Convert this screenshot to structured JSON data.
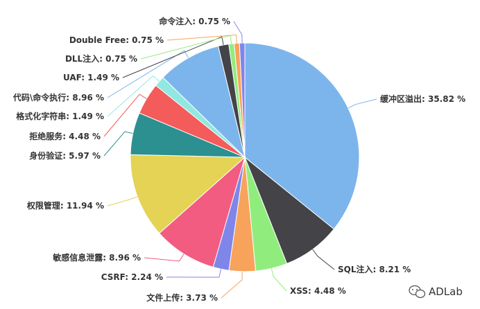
{
  "chart_data": {
    "type": "pie",
    "title": "",
    "slices": [
      {
        "label": "缓冲区溢出",
        "value": 35.82,
        "display": "缓冲区溢出: 35.82 %",
        "color": "#7cb5ec"
      },
      {
        "label": "SQL注入",
        "value": 8.21,
        "display": "SQL注入: 8.21 %",
        "color": "#434348"
      },
      {
        "label": "XSS",
        "value": 4.48,
        "display": "XSS: 4.48 %",
        "color": "#90ed7d"
      },
      {
        "label": "文件上传",
        "value": 3.73,
        "display": "文件上传: 3.73 %",
        "color": "#f7a35c"
      },
      {
        "label": "CSRF",
        "value": 2.24,
        "display": "CSRF: 2.24 %",
        "color": "#8085e9"
      },
      {
        "label": "敏感信息泄露",
        "value": 8.96,
        "display": "敏感信息泄露: 8.96 %",
        "color": "#f15c80"
      },
      {
        "label": "权限管理",
        "value": 11.94,
        "display": "权限管理: 11.94 %",
        "color": "#e4d354"
      },
      {
        "label": "身份验证",
        "value": 5.97,
        "display": "身份验证: 5.97 %",
        "color": "#2b908f"
      },
      {
        "label": "拒绝服务",
        "value": 4.48,
        "display": "拒绝服务: 4.48 %",
        "color": "#f45b5b"
      },
      {
        "label": "格式化字符串",
        "value": 1.49,
        "display": "格式化字符串: 1.49 %",
        "color": "#91e8e1"
      },
      {
        "label": "代码\\命令执行",
        "value": 8.96,
        "display": "代码\\命令执行: 8.96 %",
        "color": "#7cb5ec"
      },
      {
        "label": "UAF",
        "value": 1.49,
        "display": "UAF: 1.49 %",
        "color": "#434348"
      },
      {
        "label": "DLL注入",
        "value": 0.75,
        "display": "DLL注入: 0.75 %",
        "color": "#90ed7d"
      },
      {
        "label": "Double Free",
        "value": 0.75,
        "display": "Double Free: 0.75 %",
        "color": "#f7a35c"
      },
      {
        "label": "命令注入",
        "value": 0.75,
        "display": "命令注入: 0.75 %",
        "color": "#8085e9"
      }
    ]
  },
  "watermark": {
    "text": "ADLab",
    "icon": "wechat-icon"
  }
}
